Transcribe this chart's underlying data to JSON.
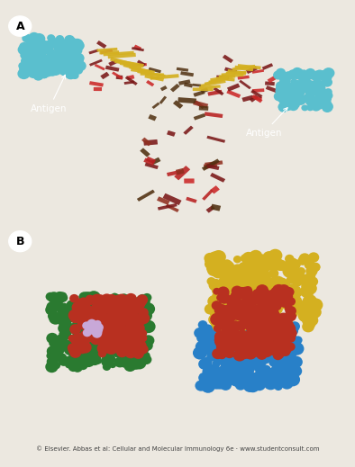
{
  "panel_A_label": "A",
  "panel_B_label": "B",
  "antigen_left_label": "Antigen",
  "antigen_right_label": "Antigen",
  "footer_text": "© Elsevier. Abbas et al: Cellular and Molecular Immunology 6e · www.studentconsult.com",
  "outer_bg": "#ece8e0",
  "footer_color": "#444444",
  "panel_A_bg": "#080c18",
  "panel_B_bg": "#060606",
  "antigen_cyan": "#5abfce",
  "yellow": "#d4b020",
  "red": "#cc2828",
  "darkred": "#7a1818",
  "brown": "#503010",
  "green": "#2a7a30",
  "orange_red": "#b83020",
  "lavender": "#c8a8d8",
  "blue": "#2880c8",
  "fig_width": 3.94,
  "fig_height": 5.19,
  "dpi": 100
}
